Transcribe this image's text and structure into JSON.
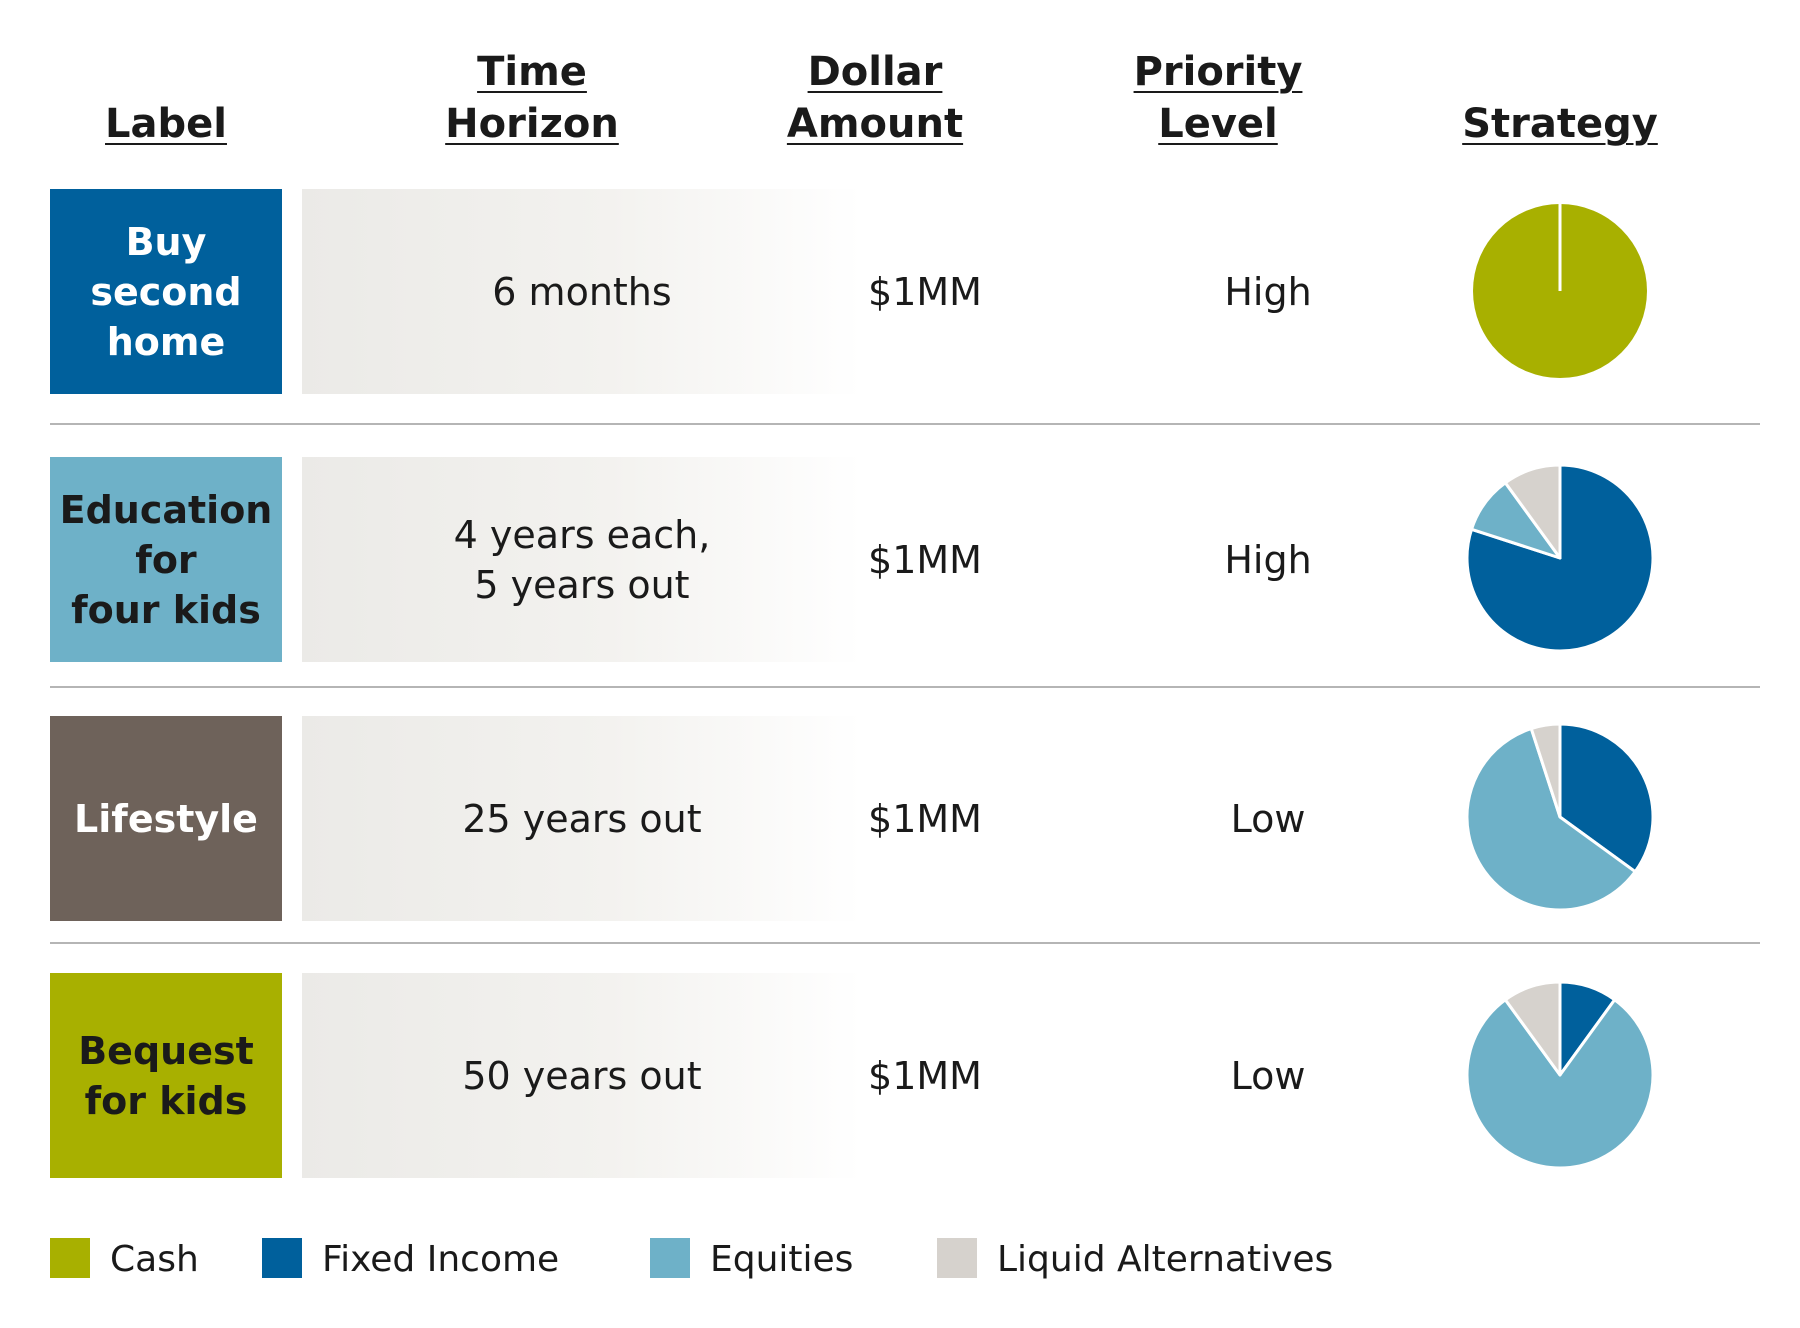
{
  "headers": {
    "label": "Label",
    "time_horizon": [
      "Time",
      "Horizon"
    ],
    "dollar_amount": [
      "Dollar",
      "Amount"
    ],
    "priority_level": [
      "Priority",
      "Level"
    ],
    "strategy": "Strategy"
  },
  "colors": {
    "cash": "#a8b000",
    "fixed_income": "#00609c",
    "equities": "#6eb1c8",
    "liquid_alternatives": "#d6d2cd",
    "lifestyle_label": "#6e625a"
  },
  "rows": [
    {
      "label": "Buy\nsecond\nhome",
      "label_bg": "#00609c",
      "label_color": "#ffffff",
      "time_horizon": "6 months",
      "dollar_amount": "$1MM",
      "priority": "High"
    },
    {
      "label": "Education\nfor\nfour kids",
      "label_bg": "#6eb1c8",
      "label_color": "#1a1a1a",
      "time_horizon": "4 years each,\n5 years out",
      "dollar_amount": "$1MM",
      "priority": "High"
    },
    {
      "label": "Lifestyle",
      "label_bg": "#6e625a",
      "label_color": "#ffffff",
      "time_horizon": "25 years out",
      "dollar_amount": "$1MM",
      "priority": "Low"
    },
    {
      "label": "Bequest\nfor kids",
      "label_bg": "#a8b000",
      "label_color": "#1a1a1a",
      "time_horizon": "50 years out",
      "dollar_amount": "$1MM",
      "priority": "Low"
    }
  ],
  "legend": [
    {
      "label": "Cash",
      "color": "#a8b000"
    },
    {
      "label": "Fixed Income",
      "color": "#00609c"
    },
    {
      "label": "Equities",
      "color": "#6eb1c8"
    },
    {
      "label": "Liquid Alternatives",
      "color": "#d6d2cd"
    }
  ],
  "chart_data": [
    {
      "type": "pie",
      "row": "Buy second home",
      "categories": [
        "Cash",
        "Fixed Income",
        "Equities",
        "Liquid Alternatives"
      ],
      "values": [
        100,
        0,
        0,
        0
      ]
    },
    {
      "type": "pie",
      "row": "Education for four kids",
      "categories": [
        "Cash",
        "Fixed Income",
        "Equities",
        "Liquid Alternatives"
      ],
      "values": [
        0,
        80,
        10,
        10
      ]
    },
    {
      "type": "pie",
      "row": "Lifestyle",
      "categories": [
        "Cash",
        "Fixed Income",
        "Equities",
        "Liquid Alternatives"
      ],
      "values": [
        0,
        35,
        60,
        5
      ]
    },
    {
      "type": "pie",
      "row": "Bequest for kids",
      "categories": [
        "Cash",
        "Fixed Income",
        "Equities",
        "Liquid Alternatives"
      ],
      "values": [
        0,
        10,
        80,
        10
      ]
    }
  ]
}
